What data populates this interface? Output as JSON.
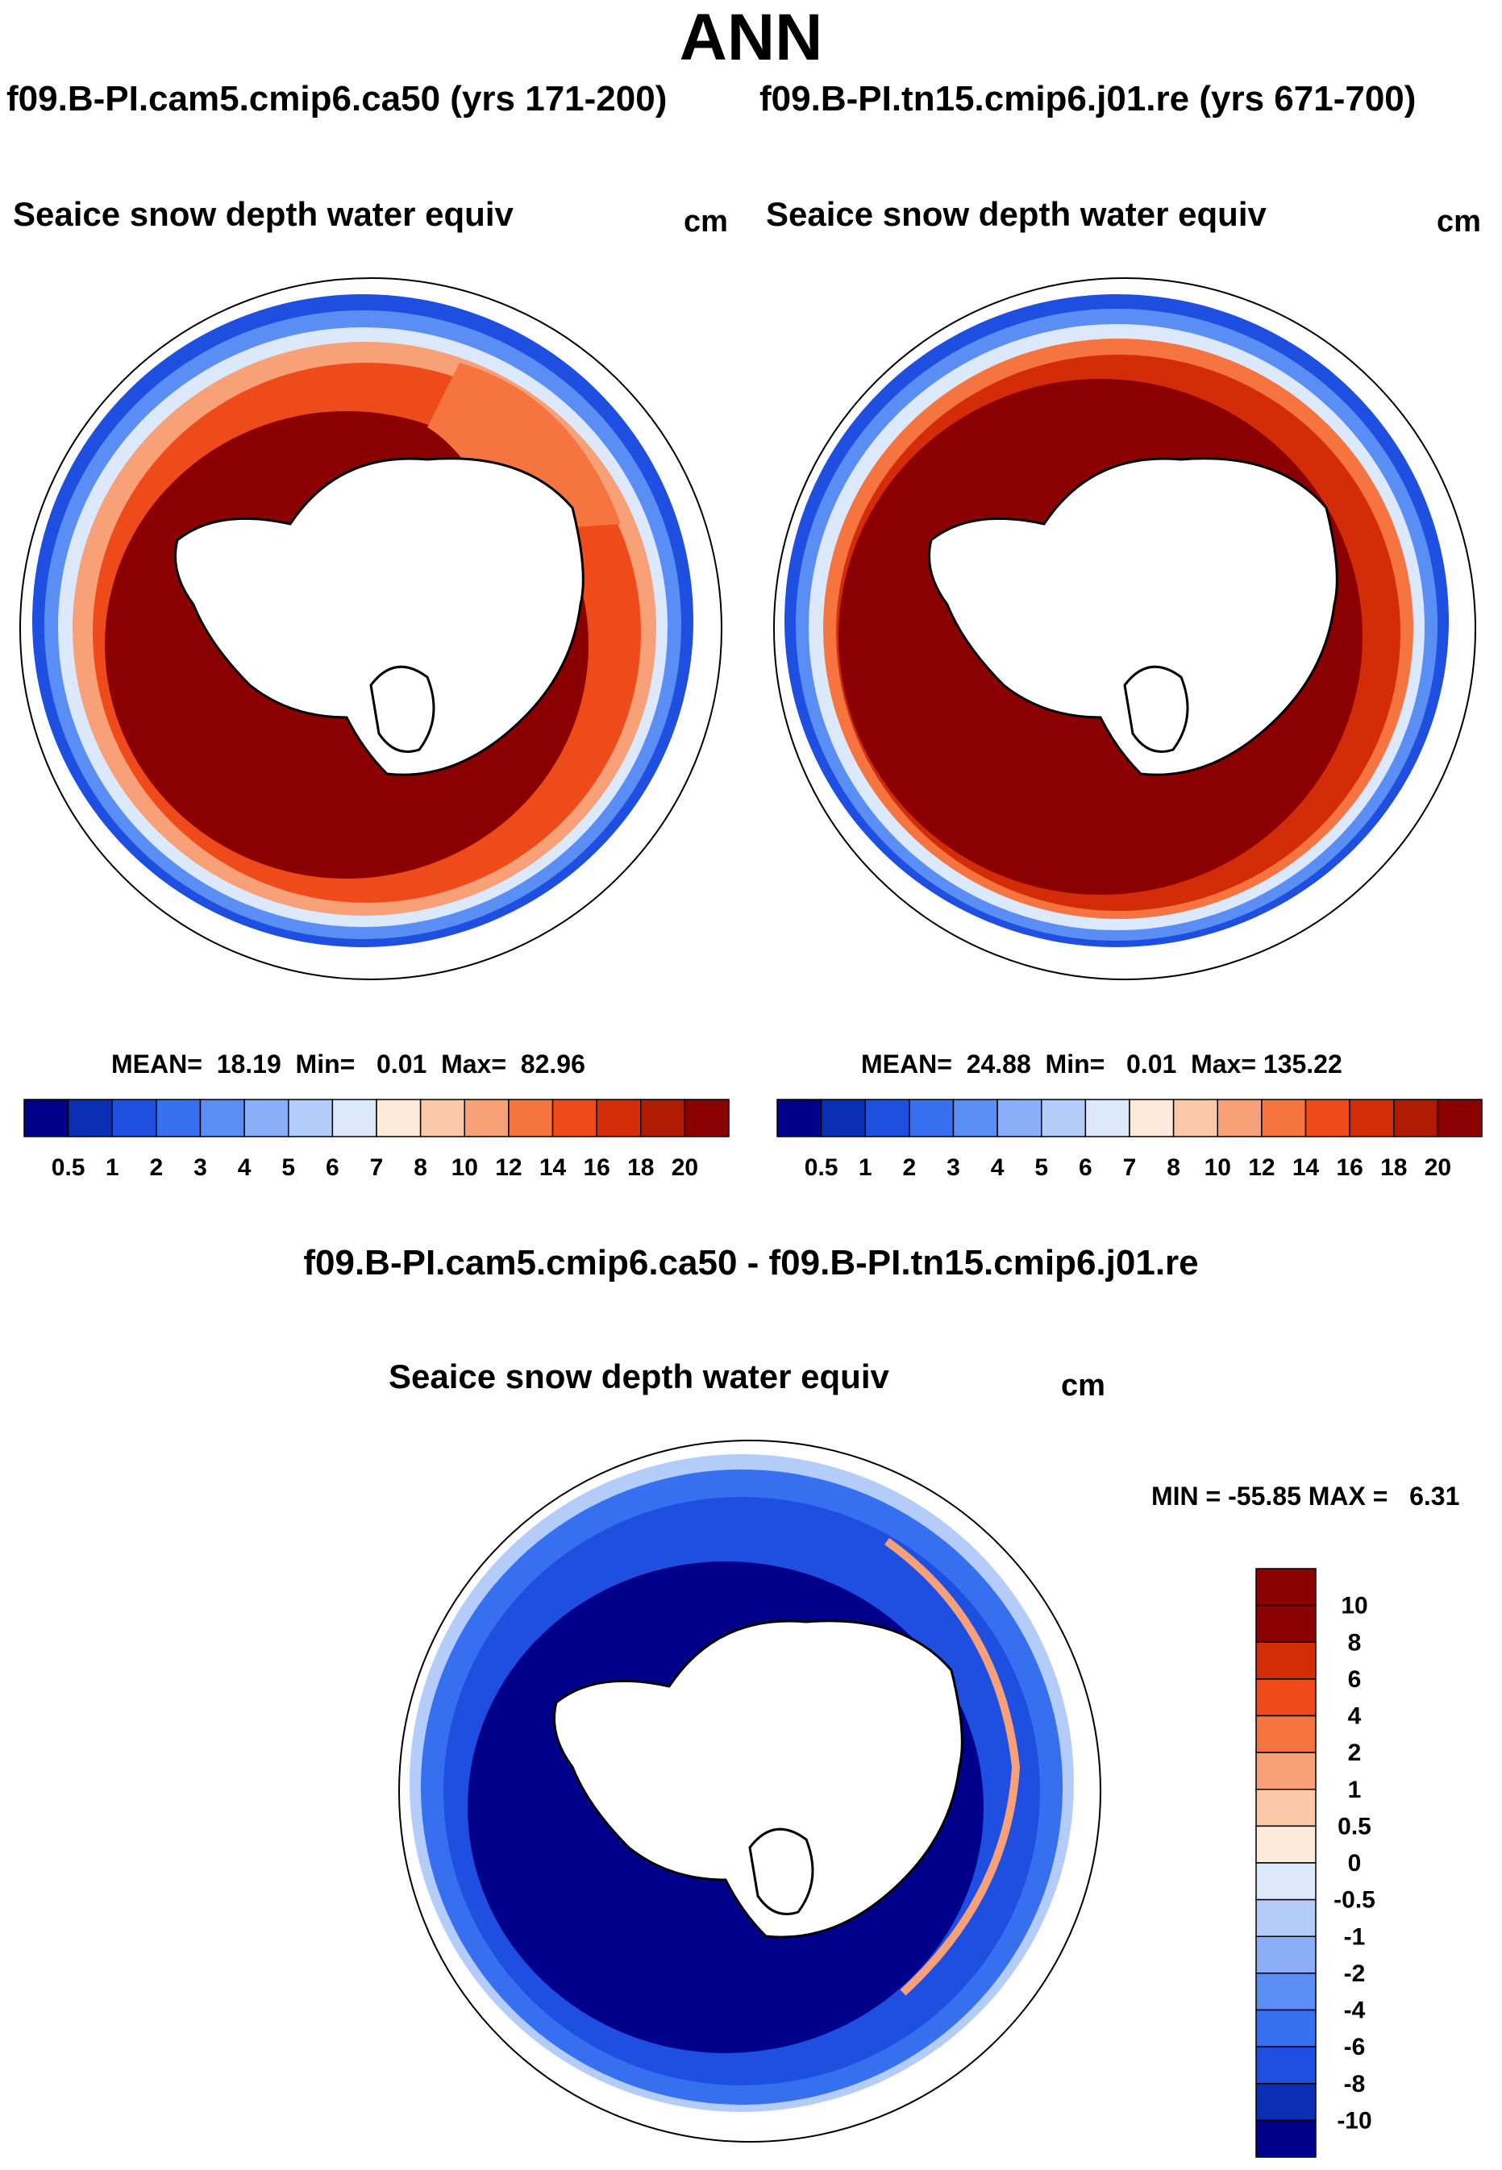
{
  "season": "ANN",
  "case_a": "f09.B-PI.cam5.cmip6.ca50 (yrs 171-200)",
  "case_b": "f09.B-PI.tn15.cmip6.j01.re (yrs 671-700)",
  "diff_title": "f09.B-PI.cam5.cmip6.ca50 - f09.B-PI.tn15.cmip6.j01.re",
  "colors": {
    "seq": [
      "#00008b",
      "#0a2fb5",
      "#1f4fe0",
      "#3670f0",
      "#5a8ef5",
      "#8aaef7",
      "#b4ccfa",
      "#dce9fc",
      "#fdeadb",
      "#fbc9a8",
      "#f8a077",
      "#f5743f",
      "#ef4a1a",
      "#d42c08",
      "#b01c02",
      "#8b0000"
    ],
    "diff": [
      "#00008b",
      "#0a2fb5",
      "#1f4fe0",
      "#3670f0",
      "#5a8ef5",
      "#8aaef7",
      "#b4ccfa",
      "#dce9fc",
      "#fdeadb",
      "#fbc9a8",
      "#f8a077",
      "#f5743f",
      "#ef4a1a",
      "#d42c08",
      "#8b0000"
    ],
    "land": "#ffffff",
    "coast": "#000000"
  },
  "chart_data": [
    {
      "type": "heatmap",
      "projection": "south polar stereographic",
      "title": "Seaice snow depth water equiv",
      "units": "cm",
      "case": "f09.B-PI.cam5.cmip6.ca50 (yrs 171-200)",
      "mean_label": "MEAN=",
      "mean": "18.19",
      "min_label": "Min=",
      "min": "0.01",
      "max_label": "Max=",
      "max": "82.96",
      "colorbar_levels": [
        "0.5",
        "1",
        "2",
        "3",
        "4",
        "5",
        "6",
        "7",
        "8",
        "10",
        "12",
        "14",
        "16",
        "18",
        "20"
      ]
    },
    {
      "type": "heatmap",
      "projection": "south polar stereographic",
      "title": "Seaice snow depth water equiv",
      "units": "cm",
      "case": "f09.B-PI.tn15.cmip6.j01.re (yrs 671-700)",
      "mean_label": "MEAN=",
      "mean": "24.88",
      "min_label": "Min=",
      "min": "0.01",
      "max_label": "Max=",
      "max": "135.22",
      "colorbar_levels": [
        "0.5",
        "1",
        "2",
        "3",
        "4",
        "5",
        "6",
        "7",
        "8",
        "10",
        "12",
        "14",
        "16",
        "18",
        "20"
      ]
    },
    {
      "type": "heatmap",
      "projection": "south polar stereographic",
      "title": "Seaice snow depth water equiv",
      "units": "cm",
      "case": "f09.B-PI.cam5.cmip6.ca50 - f09.B-PI.tn15.cmip6.j01.re",
      "min_label": "MIN =",
      "min": "-55.85",
      "max_label": "MAX =",
      "max": "6.31",
      "colorbar_levels": [
        "10",
        "8",
        "6",
        "4",
        "2",
        "1",
        "0.5",
        "0",
        "-0.5",
        "-1",
        "-2",
        "-4",
        "-6",
        "-8",
        "-10"
      ]
    }
  ]
}
